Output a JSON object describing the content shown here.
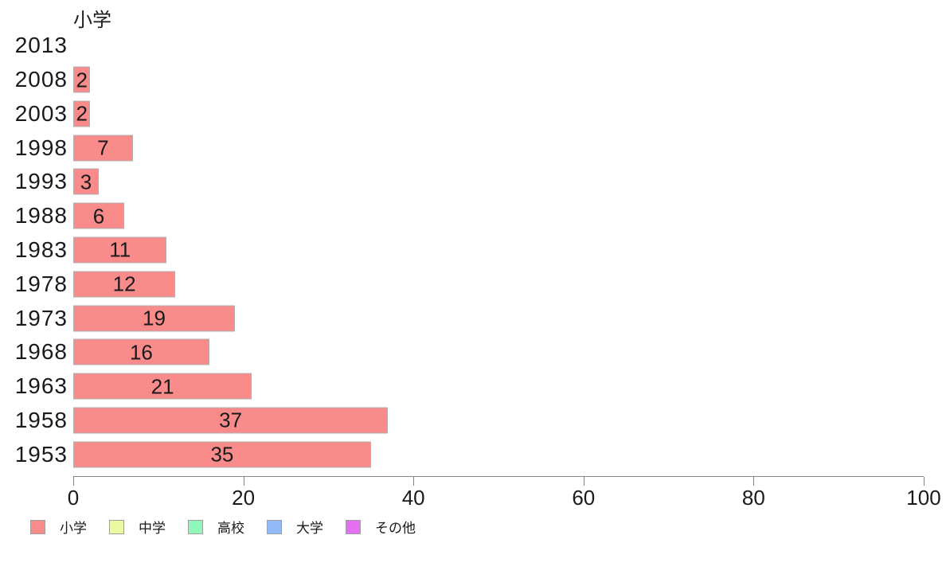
{
  "chart_data": {
    "type": "bar",
    "orientation": "horizontal",
    "title": "小学",
    "categories": [
      "2013",
      "2008",
      "2003",
      "1998",
      "1993",
      "1988",
      "1983",
      "1978",
      "1973",
      "1968",
      "1963",
      "1958",
      "1953"
    ],
    "values": [
      0,
      2,
      2,
      7,
      3,
      6,
      11,
      12,
      19,
      16,
      21,
      37,
      35
    ],
    "bar_labels": [
      "",
      "2",
      "2",
      "7",
      "3",
      "6",
      "11",
      "12",
      "19",
      "16",
      "21",
      "37",
      "35"
    ],
    "xlabel": "",
    "ylabel": "",
    "xlim": [
      0,
      100
    ],
    "x_ticks": [
      0,
      20,
      40,
      60,
      80,
      100
    ],
    "grid": false,
    "bar_color": "#f98b8b",
    "bar_border_color": "#b0b0b0",
    "axis_color": "#848484",
    "text_color": "#1a1a1a",
    "legend_position": "bottom",
    "legend": [
      {
        "label": "小学",
        "color": "#f98b8b"
      },
      {
        "label": "中学",
        "color": "#edf9a2"
      },
      {
        "label": "高校",
        "color": "#8ff7ba"
      },
      {
        "label": "大学",
        "color": "#93baf8"
      },
      {
        "label": "その他",
        "color": "#e470f2"
      }
    ]
  }
}
